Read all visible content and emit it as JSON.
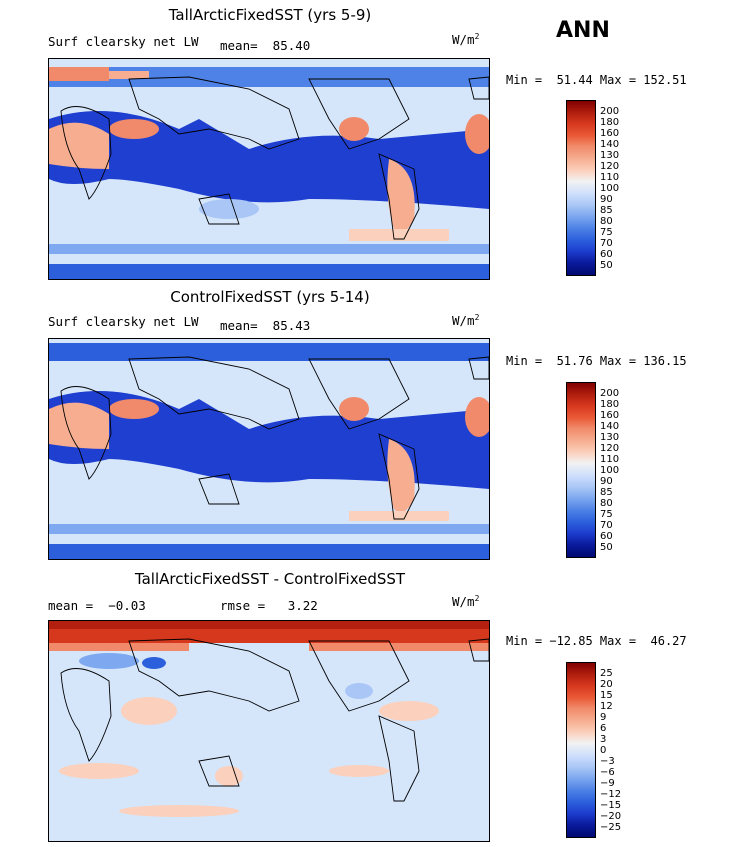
{
  "season": "ANN",
  "colors": {
    "ocean_blue": "#1e3fd0",
    "land_light": "#d5e6fb",
    "warm_red": "#f08a6a",
    "deep_red": "#d6381e"
  },
  "panels": [
    {
      "title": "TallArcticFixedSST (yrs 5-9)",
      "variable": "Surf clearsky net LW",
      "mean_text": "mean=  85.40",
      "units_base": "W/m",
      "units_sup": "2",
      "minmax": "Min =  51.44 Max = 152.51",
      "levels": [
        "200",
        "180",
        "160",
        "140",
        "130",
        "120",
        "110",
        "100",
        "90",
        "85",
        "80",
        "75",
        "70",
        "60",
        "50"
      ]
    },
    {
      "title": "ControlFixedSST (yrs 5-14)",
      "variable": "Surf clearsky net LW",
      "mean_text": "mean=  85.43",
      "units_base": "W/m",
      "units_sup": "2",
      "minmax": "Min =  51.76 Max = 136.15",
      "levels": [
        "200",
        "180",
        "160",
        "140",
        "130",
        "120",
        "110",
        "100",
        "90",
        "85",
        "80",
        "75",
        "70",
        "60",
        "50"
      ]
    },
    {
      "title": "TallArcticFixedSST - ControlFixedSST",
      "mean_text": "mean =  −0.03",
      "rmse_text": "rmse =   3.22",
      "units_base": "W/m",
      "units_sup": "2",
      "minmax": "Min = −12.85 Max =  46.27",
      "levels": [
        "25",
        "20",
        "15",
        "12",
        "9",
        "6",
        "3",
        "0",
        "−3",
        "−6",
        "−9",
        "−12",
        "−15",
        "−20",
        "−25"
      ]
    }
  ],
  "colorbar_colors": [
    "#800000",
    "#b3200f",
    "#d6381e",
    "#ea5a36",
    "#f08a6a",
    "#f6ad90",
    "#fbd0bc",
    "#f2f2f2",
    "#cfe0fb",
    "#a9c6f6",
    "#7ea8ef",
    "#4e82e6",
    "#2c5fdc",
    "#1e3fd0",
    "#0a1a9c",
    "#000a70"
  ]
}
